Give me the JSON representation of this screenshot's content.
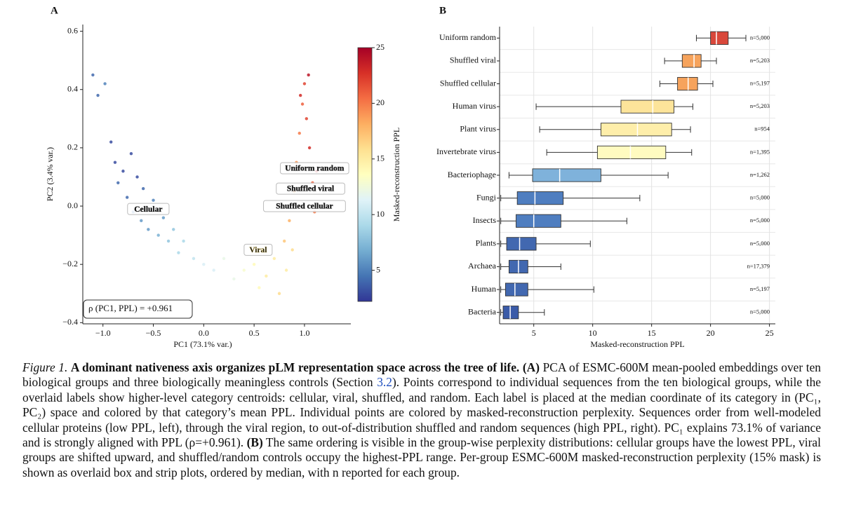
{
  "chart_data": [
    {
      "type": "scatter",
      "panel": "A",
      "xlabel": "PC1 (73.1% var.)",
      "ylabel": "PC2 (3.4% var.)",
      "xlim": [
        -1.2,
        1.46
      ],
      "ylim": [
        -0.404,
        0.623
      ],
      "xticks": [
        {
          "value": -1.0,
          "label": "−1.0"
        },
        {
          "value": -0.5,
          "label": "−0.5"
        },
        {
          "value": 0.0,
          "label": "0.0"
        },
        {
          "value": 0.5,
          "label": "0.5"
        },
        {
          "value": 1.0,
          "label": "1.0"
        }
      ],
      "yticks": [
        {
          "value": -0.4,
          "label": "−0.4"
        },
        {
          "value": -0.2,
          "label": "−0.2"
        },
        {
          "value": 0.0,
          "label": "0.0"
        },
        {
          "value": 0.2,
          "label": "0.2"
        },
        {
          "value": 0.4,
          "label": "0.4"
        },
        {
          "value": 0.6,
          "label": "0.6"
        }
      ],
      "colormap": "RdYlBu_r",
      "colorbar": {
        "label": "Masked-reconstruction PPL",
        "lim": [
          2.2,
          25
        ],
        "ticks": [
          5,
          10,
          15,
          20,
          25
        ]
      },
      "x": [
        -1.1,
        -1.05,
        -0.98,
        -0.92,
        -0.88,
        -0.85,
        -0.8,
        -0.76,
        -0.72,
        -0.7,
        -0.66,
        -0.62,
        -0.6,
        -0.55,
        -0.5,
        -0.45,
        -0.4,
        -0.35,
        -0.3,
        -0.25,
        -0.2,
        -0.1,
        0.0,
        0.1,
        0.2,
        0.3,
        0.4,
        0.5,
        0.55,
        0.62,
        0.7,
        0.75,
        0.8,
        0.85,
        0.9,
        0.92,
        0.95,
        0.98,
        1.0,
        1.02,
        1.05,
        1.08,
        1.1,
        1.12,
        0.88,
        0.96,
        1.04,
        0.82
      ],
      "y": [
        0.45,
        0.38,
        0.42,
        0.22,
        0.15,
        0.08,
        0.12,
        0.03,
        0.18,
        -0.02,
        0.1,
        -0.05,
        0.06,
        -0.08,
        0.02,
        -0.1,
        -0.04,
        -0.12,
        -0.08,
        -0.16,
        -0.12,
        -0.18,
        -0.2,
        -0.22,
        -0.18,
        -0.25,
        -0.22,
        -0.2,
        -0.28,
        -0.24,
        -0.18,
        -0.3,
        -0.12,
        -0.05,
        0.05,
        0.15,
        0.25,
        0.35,
        0.42,
        0.3,
        0.2,
        0.08,
        -0.02,
        0.12,
        -0.15,
        0.38,
        0.45,
        -0.22
      ],
      "ppl": [
        4,
        4,
        5,
        3,
        3,
        4,
        3,
        4,
        3,
        5,
        3,
        6,
        4,
        6,
        5,
        7,
        6,
        8,
        8,
        9,
        9,
        10,
        11,
        11,
        12,
        12,
        13,
        14,
        14,
        15,
        15,
        16,
        17,
        18,
        19,
        19,
        20,
        21,
        22,
        22,
        23,
        21,
        20,
        24,
        16,
        23,
        24,
        15
      ],
      "annotations": [
        {
          "text": "Cellular",
          "x": -0.55,
          "y": -0.01,
          "ppl": 5
        },
        {
          "text": "Viral",
          "x": 0.54,
          "y": -0.15,
          "ppl": 13
        },
        {
          "text": "Shuffled cellular",
          "x": 1.0,
          "y": 0.0,
          "ppl": 18
        },
        {
          "text": "Shuffled viral",
          "x": 1.06,
          "y": 0.06,
          "ppl": 19
        },
        {
          "text": "Uniform random",
          "x": 1.1,
          "y": 0.13,
          "ppl": 21
        }
      ],
      "stat_label": "ρ (PC1, PPL) = +0.961"
    },
    {
      "type": "box",
      "panel": "B",
      "xlabel": "Masked-reconstruction PPL",
      "xlim": [
        2.1,
        25.5
      ],
      "xticks": [
        5,
        10,
        15,
        20,
        25
      ],
      "categories": [
        "Uniform random",
        "Shuffled viral",
        "Shuffled cellular",
        "Human virus",
        "Plant virus",
        "Invertebrate virus",
        "Bacteriophage",
        "Fungi",
        "Insects",
        "Plants",
        "Archaea",
        "Human",
        "Bacteria"
      ],
      "colors": [
        "#d9483b",
        "#f6a35c",
        "#f6a35c",
        "#fde49a",
        "#feeeaa",
        "#fffbc0",
        "#7fb2db",
        "#4f7ec0",
        "#4f7ec0",
        "#4268b0",
        "#4268b0",
        "#4268b0",
        "#3b5ba8"
      ],
      "whisker_low": [
        18.8,
        16.1,
        15.7,
        5.2,
        5.5,
        6.1,
        2.9,
        2.2,
        2.2,
        2.2,
        2.2,
        2.2,
        2.2
      ],
      "q1": [
        20.0,
        17.6,
        17.2,
        12.4,
        10.7,
        10.4,
        4.9,
        3.6,
        3.5,
        2.7,
        2.9,
        2.6,
        2.4
      ],
      "median": [
        20.5,
        18.6,
        18.1,
        15.1,
        13.8,
        13.2,
        7.2,
        5.1,
        5.0,
        3.8,
        3.7,
        3.4,
        3.0
      ],
      "q3": [
        21.5,
        19.2,
        18.9,
        16.9,
        16.7,
        16.2,
        10.7,
        7.5,
        7.3,
        5.2,
        4.5,
        4.5,
        3.7
      ],
      "whisker_high": [
        23.0,
        20.5,
        20.2,
        18.5,
        18.3,
        18.4,
        16.4,
        14.0,
        12.9,
        9.8,
        7.3,
        10.1,
        5.9
      ],
      "n_labels": [
        "n=5,000",
        "n=5,203",
        "n=5,197",
        "n=5,203",
        "n=954",
        "n=1,395",
        "n=1,262",
        "n=5,000",
        "n=5,000",
        "n=5,000",
        "n=17,379",
        "n=5,197",
        "n=5,000"
      ]
    }
  ],
  "caption": {
    "label": "Figure 1.",
    "title": "A dominant nativeness axis organizes pLM representation space across the tree of life.",
    "a_label": "(A)",
    "a_text_1": "PCA of ESMC-600M mean-pooled embeddings over ten biological groups and three biologically meaningless controls (Section",
    "a_ref": "3.2",
    "a_text_2": "). Points correspond to individual sequences from the ten biological groups, while the overlaid labels show higher-level category centroids: cellular, viral, shuffled, and random. Each label is placed at the median coordinate of its category in (PC₁, PC₂) space and colored by that category’s mean PPL. Individual points are colored by masked-reconstruction perplexity. Sequences order from well-modeled cellular proteins (low PPL, left), through the viral region, to out-of-distribution shuffled and random sequences (high PPL, right). PC₁ explains 73.1% of variance and is strongly aligned with PPL (ρ=+0.961).",
    "b_label": "(B)",
    "b_text": "The same ordering is visible in the group-wise perplexity distributions: cellular groups have the lowest PPL, viral groups are shifted upward, and shuffled/random controls occupy the highest-PPL range. Per-group ESMC-600M masked-reconstruction perplexity (15% mask) is shown as overlaid box and strip plots, ordered by median, with n reported for each group."
  }
}
